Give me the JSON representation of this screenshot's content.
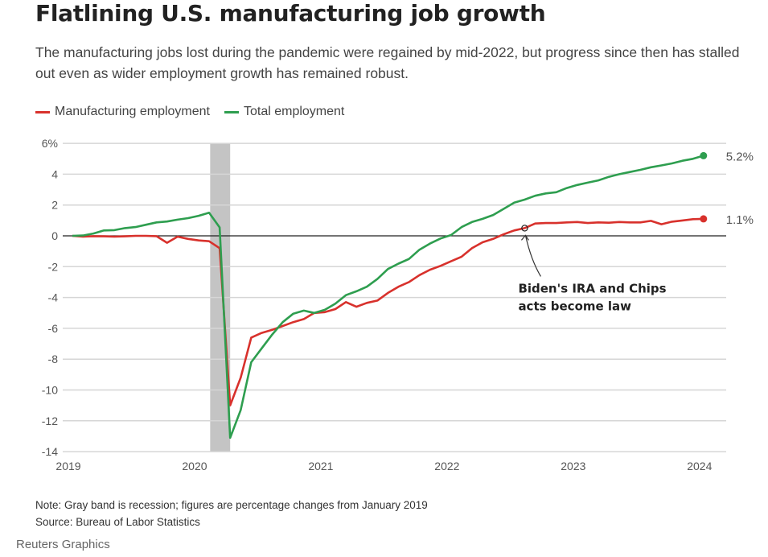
{
  "title": "Flatlining U.S. manufacturing job growth",
  "subtitle": "The manufacturing jobs lost during the pandemic were regained by mid-2022, but progress since then has stalled out even as wider employment growth has remained robust.",
  "note": "Note: Gray band is recession; figures are percentage changes from January 2019",
  "source": "Source: Bureau of Labor Statistics",
  "credit": "Reuters Graphics",
  "chart_data": {
    "type": "line",
    "xlabel": "",
    "ylabel": "",
    "x_start": "2019-01",
    "x_frequency": "monthly",
    "x_ticks": [
      "2019",
      "2020",
      "2021",
      "2022",
      "2023",
      "2024"
    ],
    "y_ticks": [
      "6%",
      "4",
      "2",
      "0",
      "-2",
      "-4",
      "-6",
      "-8",
      "-10",
      "-12",
      "-14"
    ],
    "ylim": [
      -14,
      6
    ],
    "grid": true,
    "legend": "top-left",
    "recession": [
      "2020-02",
      "2020-04"
    ],
    "series": [
      {
        "name": "Manufacturing employment",
        "color": "#d8312c",
        "end_label": "1.1%",
        "values": [
          0,
          -0.05,
          -0.02,
          -0.03,
          -0.05,
          -0.03,
          0,
          0,
          -0.02,
          -0.45,
          -0.05,
          -0.2,
          -0.3,
          -0.35,
          -0.8,
          -11.0,
          -9.2,
          -6.6,
          -6.3,
          -6.1,
          -5.85,
          -5.6,
          -5.4,
          -5.0,
          -4.95,
          -4.75,
          -4.3,
          -4.6,
          -4.35,
          -4.2,
          -3.7,
          -3.3,
          -3.0,
          -2.55,
          -2.2,
          -1.95,
          -1.65,
          -1.35,
          -0.8,
          -0.42,
          -0.2,
          0.1,
          0.35,
          0.5,
          0.8,
          0.83,
          0.83,
          0.87,
          0.9,
          0.83,
          0.87,
          0.85,
          0.9,
          0.87,
          0.87,
          0.97,
          0.75,
          0.92,
          1.0,
          1.08,
          1.1
        ]
      },
      {
        "name": "Total employment",
        "color": "#2e9e4f",
        "end_label": "5.2%",
        "values": [
          0,
          0.02,
          0.15,
          0.35,
          0.37,
          0.5,
          0.57,
          0.72,
          0.87,
          0.93,
          1.05,
          1.15,
          1.3,
          1.5,
          0.55,
          -13.1,
          -11.3,
          -8.2,
          -7.3,
          -6.4,
          -5.6,
          -5.05,
          -4.85,
          -5.0,
          -4.8,
          -4.4,
          -3.85,
          -3.6,
          -3.3,
          -2.8,
          -2.15,
          -1.8,
          -1.5,
          -0.9,
          -0.5,
          -0.17,
          0.05,
          0.57,
          0.9,
          1.1,
          1.35,
          1.75,
          2.15,
          2.35,
          2.6,
          2.75,
          2.83,
          3.1,
          3.3,
          3.45,
          3.6,
          3.83,
          4.0,
          4.14,
          4.28,
          4.45,
          4.57,
          4.7,
          4.87,
          5.0,
          5.2
        ]
      }
    ],
    "annotations": [
      {
        "x": "2022-08",
        "series": "Manufacturing employment",
        "lines": [
          "Biden's IRA and Chips",
          "acts become law"
        ]
      }
    ]
  }
}
